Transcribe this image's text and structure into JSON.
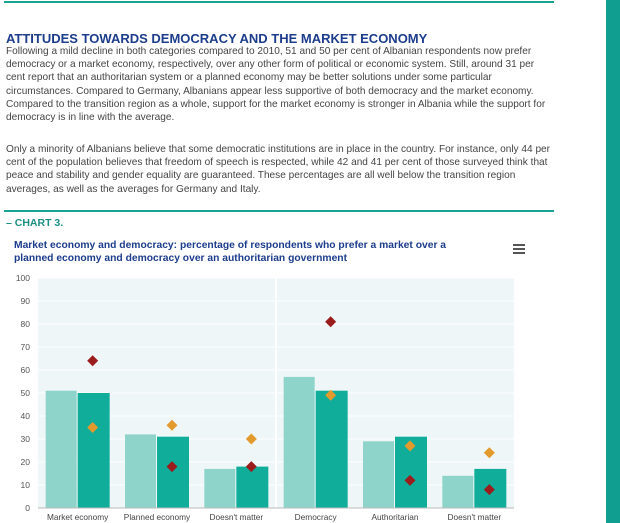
{
  "section": {
    "heading": "ATTITUDES TOWARDS DEMOCRACY AND THE MARKET ECONOMY",
    "paragraph1": "Following a mild decline in both categories compared to 2010, 51 and 50 per cent of Albanian respondents now prefer democracy or a market economy, respectively, over any other form of political or economic system. Still, around 31 per cent report that an authoritarian system or a planned economy may be better solutions under some particular circumstances. Compared to Germany, Albanians appear less supportive of both democracy and the market economy. Compared to the transition region as a whole, support for the market economy is stronger in Albania while the support for democracy is in line with the average.",
    "paragraph2": "Only a minority of Albanians believe that some democratic institutions are in place in the country. For instance, only 44 per cent of the population believes that freedom of speech is respected, while 42 and 41 per cent of those surveyed think that peace and stability and gender equality are guaranteed. These percentages are all well below the transition region averages, as well as the averages for Germany and Italy.",
    "chart_label": "– CHART 3."
  },
  "colors": {
    "accent": "#19a394",
    "title": "#1c3c8c",
    "bar_light": "#8fd4cb",
    "bar_dark": "#10ad9b",
    "diamond_red": "#9b1c1c",
    "diamond_orange": "#e39a2c",
    "plot_bg": "#eef6f7"
  },
  "chart_data": {
    "type": "bar",
    "title": "Market economy and democracy: percentage of respondents who prefer a market over a planned economy and democracy over an authoritarian government",
    "categories": [
      "Market economy",
      "Planned economy",
      "Doesn't matter",
      "Democracy",
      "Authoritarian",
      "Doesn't matter"
    ],
    "yticks": [
      "0",
      "10",
      "20",
      "30",
      "40",
      "50",
      "60",
      "70",
      "80",
      "90",
      "100"
    ],
    "ylim": [
      0,
      100
    ],
    "grid": true,
    "legend": "none",
    "bar_series": [
      {
        "values": [
          51,
          32,
          17,
          57,
          29,
          14
        ]
      },
      {
        "values": [
          50,
          31,
          18,
          51,
          31,
          17
        ]
      }
    ],
    "marker_series": [
      {
        "marker": "diamond",
        "color": "red",
        "values": [
          64,
          18,
          18,
          81,
          12,
          8
        ]
      },
      {
        "marker": "diamond",
        "color": "orange",
        "values": [
          35,
          36,
          30,
          49,
          27,
          24
        ]
      }
    ]
  }
}
